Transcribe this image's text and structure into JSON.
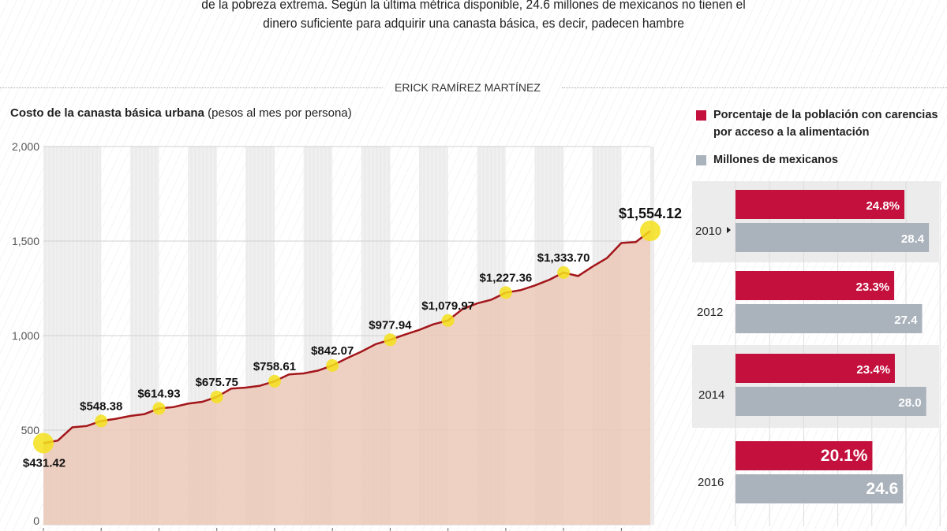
{
  "intro": {
    "line1": "de la pobreza extrema. Según la última métrica disponible, 24.6 millones de mexicanos no tienen el",
    "line2": "dinero suficiente para adquirir una canasta básica, es decir, padecen hambre"
  },
  "byline": "ERICK RAMÍREZ MARTÍNEZ",
  "colors": {
    "line": "#a3161b",
    "area": "#ecc9b8",
    "highlight": "#f5e11a",
    "red_bar": "#c3103d",
    "gray_bar": "#aab2bc"
  },
  "chart_data": [
    {
      "type": "area",
      "title": "Costo de la canasta básica urbana",
      "subtitle": "(pesos al mes por persona)",
      "ylim": [
        0,
        2000
      ],
      "yticks": [
        "2,000",
        "1,500",
        "1,000",
        "500",
        "0"
      ],
      "ytick_values": [
        2000,
        1500,
        1000,
        500,
        0
      ],
      "grid": true,
      "values": [
        431.42,
        445,
        515,
        522,
        548.38,
        560,
        575,
        585,
        614.93,
        622,
        640,
        650,
        675.75,
        720,
        725,
        735,
        758.61,
        795,
        800,
        815,
        842.07,
        880,
        915,
        955,
        977.94,
        1005,
        1030,
        1060,
        1079.97,
        1140,
        1170,
        1190,
        1227.36,
        1240,
        1265,
        1295,
        1333.7,
        1315,
        1365,
        1410,
        1490,
        1495,
        1554.12
      ],
      "annotations": [
        {
          "index": 0,
          "label": "$431.42"
        },
        {
          "index": 4,
          "label": "$548.38"
        },
        {
          "index": 8,
          "label": "$614.93"
        },
        {
          "index": 12,
          "label": "$675.75"
        },
        {
          "index": 16,
          "label": "$758.61"
        },
        {
          "index": 20,
          "label": "$842.07"
        },
        {
          "index": 24,
          "label": "$977.94"
        },
        {
          "index": 28,
          "label": "$1,079.97"
        },
        {
          "index": 32,
          "label": "$1,227.36"
        },
        {
          "index": 36,
          "label": "$1,333.70"
        },
        {
          "index": 42,
          "label": "$1,554.12"
        }
      ]
    },
    {
      "type": "bar",
      "orientation": "horizontal",
      "categories": [
        "2010",
        "2012",
        "2014",
        "2016"
      ],
      "xlim": [
        0,
        30
      ],
      "legend_placement": "top",
      "series": [
        {
          "name": "Porcentaje de la población con carencias por acceso a la alimentación",
          "values": [
            24.8,
            23.3,
            23.4,
            20.1
          ],
          "labels": [
            "24.8%",
            "23.3%",
            "23.4%",
            "20.1%"
          ]
        },
        {
          "name": "Millones de mexicanos",
          "values": [
            28.4,
            27.4,
            28.0,
            24.6
          ],
          "labels": [
            "28.4",
            "27.4",
            "28.0",
            "24.6"
          ]
        }
      ]
    }
  ]
}
